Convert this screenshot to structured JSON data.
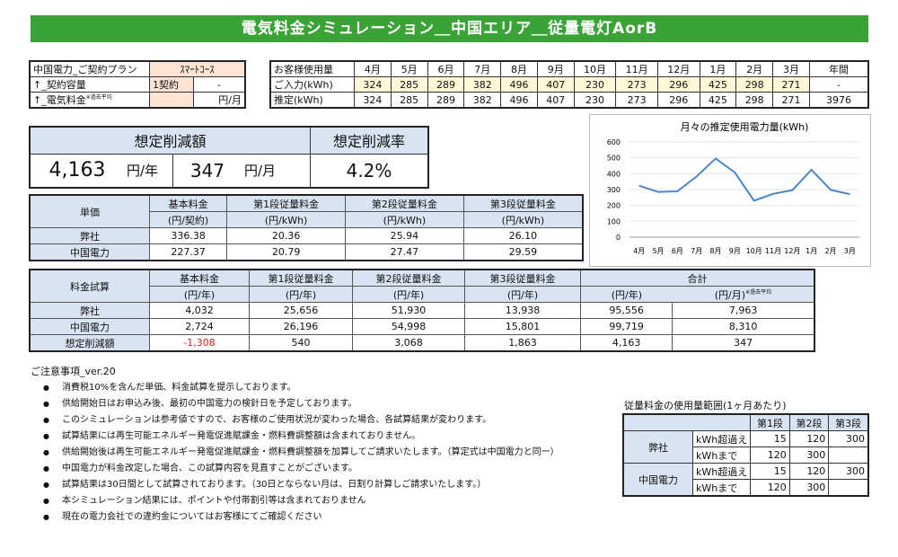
{
  "title": "電気料金シミュレーション＿中国エリア＿従量電灯AorB",
  "plan": {
    "rows": [
      {
        "label": "中国電力_ご契約プラン",
        "value": "ｽﾏｰﾄｺｰｽ",
        "unit": ""
      },
      {
        "label": "↑_契約容量",
        "value": "1契約",
        "unit": "-"
      },
      {
        "label": "↑_電気料金",
        "label_note": "※過去平均",
        "value": "",
        "unit": "円/月"
      }
    ]
  },
  "usage": {
    "header_label": "お客様使用量",
    "months": [
      "4月",
      "5月",
      "6月",
      "7月",
      "8月",
      "9月",
      "10月",
      "11月",
      "12月",
      "1月",
      "2月",
      "3月"
    ],
    "annual_label": "年間",
    "input_label": "ご入力(kWh)",
    "input": [
      "324",
      "285",
      "289",
      "382",
      "496",
      "407",
      "230",
      "273",
      "296",
      "425",
      "298",
      "271"
    ],
    "input_annual": "-",
    "estimate_label": "推定(kWh)",
    "estimate": [
      "324",
      "285",
      "289",
      "382",
      "496",
      "407",
      "230",
      "273",
      "296",
      "425",
      "298",
      "271"
    ],
    "estimate_annual": "3976"
  },
  "savings": {
    "amount_label": "想定削減額",
    "rate_label": "想定削減率",
    "yearly": "4,163",
    "yearly_unit": "円/年",
    "monthly": "347",
    "monthly_unit": "円/月",
    "rate": "4.2%"
  },
  "unit_price": {
    "header": "単価",
    "cols": [
      {
        "l1": "基本料金",
        "l2": "(円/契約)"
      },
      {
        "l1": "第1段従量料金",
        "l2": "(円/kWh)"
      },
      {
        "l1": "第2段従量料金",
        "l2": "(円/kWh)"
      },
      {
        "l1": "第3段従量料金",
        "l2": "(円/kWh)"
      }
    ],
    "rows": [
      {
        "name": "弊社",
        "vals": [
          "336.38",
          "20.36",
          "25.94",
          "26.10"
        ]
      },
      {
        "name": "中国電力",
        "vals": [
          "227.37",
          "20.79",
          "27.47",
          "29.59"
        ]
      }
    ]
  },
  "calc": {
    "header": "料金試算",
    "cols": [
      {
        "l1": "基本料金",
        "l2": "(円/年)"
      },
      {
        "l1": "第1段従量料金",
        "l2": "(円/年)"
      },
      {
        "l1": "第2段従量料金",
        "l2": "(円/年)"
      },
      {
        "l1": "第3段従量料金",
        "l2": "(円/年)"
      }
    ],
    "total_label": "合計",
    "total_year": "(円/年)",
    "total_month": "(円/月)",
    "total_month_note": "※過去平均",
    "rows": [
      {
        "name": "弊社",
        "vals": [
          "4,032",
          "25,656",
          "51,930",
          "13,938",
          "95,556",
          "7,963"
        ]
      },
      {
        "name": "中国電力",
        "vals": [
          "2,724",
          "26,196",
          "54,998",
          "15,801",
          "99,719",
          "8,310"
        ]
      },
      {
        "name": "想定削減額",
        "vals": [
          "-1,308",
          "540",
          "3,068",
          "1,863",
          "4,163",
          "347"
        ]
      }
    ]
  },
  "chart_data": {
    "type": "line",
    "title": "月々の推定使用電力量(kWh)",
    "categories": [
      "4月",
      "5月",
      "6月",
      "7月",
      "8月",
      "9月",
      "10月",
      "11月",
      "12月",
      "1月",
      "2月",
      "3月"
    ],
    "values": [
      324,
      285,
      289,
      382,
      496,
      407,
      230,
      273,
      296,
      425,
      298,
      271
    ],
    "ylim": [
      0,
      600
    ],
    "yticks": [
      "0",
      "100",
      "200",
      "300",
      "400",
      "500",
      "600"
    ],
    "color": "#4a86c8"
  },
  "notes": {
    "header": "ご注意事項_ver.20",
    "items": [
      "消費税10%を含んだ単価、料金試算を提示しております。",
      "供給開始日はお申込み後、最初の中国電力の検針日を予定しております。",
      "このシミュレーションは参考値ですので、お客様のご使用状況が変わった場合、各試算結果が変わります。",
      "試算結果には再生可能エネルギー発電促進賦課金・燃料費調整額は含まれておりません。",
      "供給開始後は再生可能エネルギー発電促進賦課金・燃料費調整額を加算してご請求いたします。（算定式は中国電力と同一）",
      "中国電力が料金改定した場合、この試算内容を見直すことがございます。",
      "試算結果は30日間として試算されております。（30日とならない月は、日割り計算しご請求いたします。）",
      "本シミュレーション結果には、ポイントや付帯割引等は含まれておりません",
      "現在の電力会社での違約金についてはお客様にてご確認ください"
    ]
  },
  "range": {
    "title": "従量料金の使用量範囲(1ヶ月あたり)",
    "cols": [
      "第1段",
      "第2段",
      "第3段"
    ],
    "rows": [
      {
        "name": "弊社",
        "sub1": "kWh超過え",
        "v1": [
          "15",
          "120",
          "300"
        ],
        "sub2": "kWhまで",
        "v2": [
          "120",
          "300",
          ""
        ]
      },
      {
        "name": "中国電力",
        "sub1": "kWh超過え",
        "v1": [
          "15",
          "120",
          "300"
        ],
        "sub2": "kWhまで",
        "v2": [
          "120",
          "300",
          ""
        ]
      }
    ]
  }
}
